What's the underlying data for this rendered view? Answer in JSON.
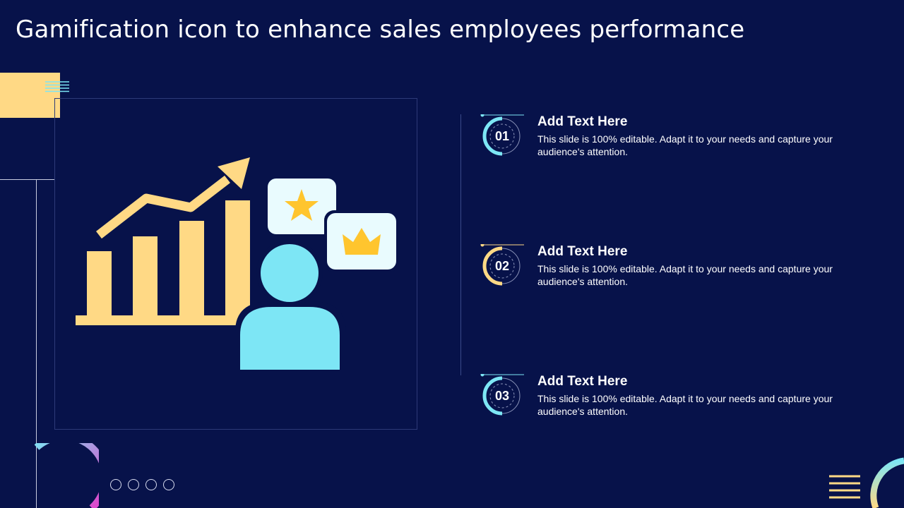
{
  "slide": {
    "title": "Gamification icon to enhance sales employees performance"
  },
  "items": [
    {
      "number": "01",
      "heading": "Add Text Here",
      "body": "This slide is 100% editable. Adapt it to your needs and capture your audience's attention.",
      "accent": "#7de6f5"
    },
    {
      "number": "02",
      "heading": "Add Text Here",
      "body": "This slide is 100% editable. Adapt it to your needs and capture your audience's attention.",
      "accent": "#ffd985"
    },
    {
      "number": "03",
      "heading": "Add Text Here",
      "body": "This slide is 100% editable. Adapt it to your needs and capture your audience's attention.",
      "accent": "#7de6f5"
    }
  ],
  "colors": {
    "background": "#07124a",
    "yellow": "#ffd985",
    "cyan": "#7de6f5",
    "magenta": "#e23bc8"
  },
  "icons": [
    "growth-chart-icon",
    "star-icon",
    "crown-icon",
    "employee-icon"
  ]
}
